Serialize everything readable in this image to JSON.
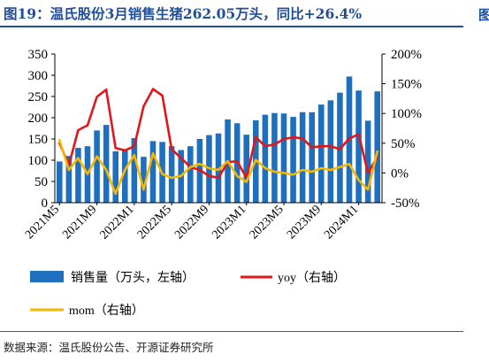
{
  "title": "图19：温氏股份3月销售生猪262.05万头，同比+26.4%",
  "edge_char": "图",
  "source": "数据来源：温氏股份公告、开源证券研究所",
  "chart_data": {
    "type": "bar",
    "categories": [
      "2021M5",
      "2021M6",
      "2021M7",
      "2021M8",
      "2021M9",
      "2021M10",
      "2021M11",
      "2021M12",
      "2022M1",
      "2022M2",
      "2022M3",
      "2022M4",
      "2022M5",
      "2022M6",
      "2022M7",
      "2022M8",
      "2022M9",
      "2022M10",
      "2022M11",
      "2022M12",
      "2023M1",
      "2023M2",
      "2023M3",
      "2023M4",
      "2023M5",
      "2023M6",
      "2023M7",
      "2023M8",
      "2023M9",
      "2023M10",
      "2023M11",
      "2023M12",
      "2024M1",
      "2024M2",
      "2024M3"
    ],
    "tick_labels": [
      "2021M5",
      "2021M9",
      "2022M1",
      "2022M5",
      "2022M9",
      "2023M1",
      "2023M5",
      "2023M9",
      "2024M1"
    ],
    "series": [
      {
        "name": "销售量（万头，左轴）",
        "type": "bar",
        "axis": "left",
        "color": "#1f6fbf",
        "values": [
          97,
          110,
          129,
          133,
          170,
          183,
          121,
          125,
          152,
          108,
          145,
          143,
          133,
          124,
          133,
          150,
          159,
          163,
          196,
          187,
          160,
          194,
          207,
          211,
          210,
          202,
          213,
          213,
          231,
          241,
          259,
          297,
          264,
          193,
          262.05
        ]
      },
      {
        "name": "yoy（右轴）",
        "type": "line",
        "axis": "right",
        "color": "#e0161b",
        "values": [
          50,
          13,
          72,
          80,
          128,
          140,
          42,
          38,
          45,
          112,
          141,
          130,
          40,
          25,
          10,
          5,
          -5,
          -8,
          18,
          20,
          -8,
          60,
          45,
          48,
          57,
          60,
          58,
          43,
          45,
          45,
          40,
          58,
          65,
          0,
          26.4
        ]
      },
      {
        "name": "mom（右轴）",
        "type": "line",
        "axis": "right",
        "color": "#f5b700",
        "values": [
          55,
          5,
          25,
          -2,
          28,
          5,
          -35,
          5,
          30,
          -28,
          33,
          -2,
          -8,
          -5,
          10,
          15,
          8,
          5,
          20,
          -5,
          -15,
          22,
          8,
          2,
          0,
          -3,
          5,
          2,
          8,
          5,
          10,
          15,
          -12,
          -28,
          36
        ]
      }
    ],
    "left_axis": {
      "min": 0,
      "max": 350,
      "ticks": [
        "0",
        "50",
        "100",
        "150",
        "200",
        "250",
        "300",
        "350"
      ]
    },
    "right_axis": {
      "min": -50,
      "max": 200,
      "ticks": [
        "-50%",
        "0%",
        "50%",
        "100%",
        "150%",
        "200%"
      ]
    },
    "legend": [
      "销售量（万头，左轴）",
      "yoy（右轴）",
      "mom（右轴）"
    ],
    "legend_position": "bottom",
    "grid": false
  }
}
